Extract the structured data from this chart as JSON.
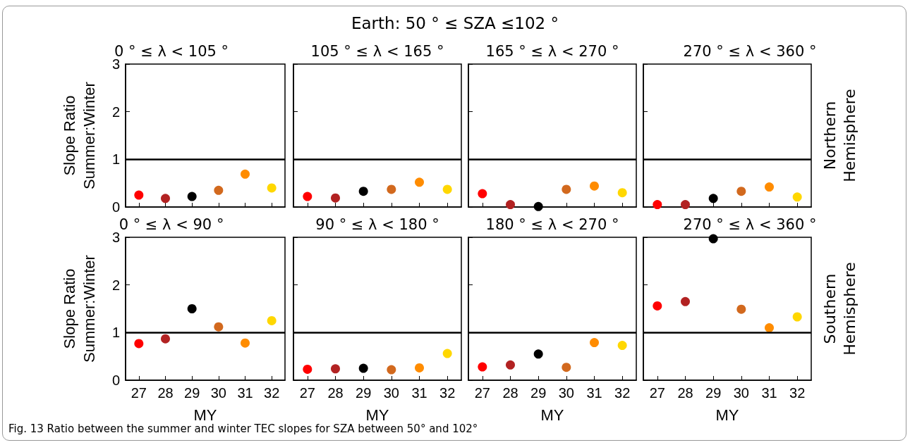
{
  "chart_data": [
    {
      "type": "scatter",
      "title": "0 ° ≤ λ < 105 °",
      "ylabel": "Slope Ratio\nSummer:Winter",
      "annotations": [
        "Earth: 50 ° ≤  SZA  ≤102 °",
        "Fig. 13  Ratio between the summer and winter TEC slopes for SZA between 50° and 102°"
      ],
      "categories": [
        "27",
        "28",
        "29",
        "30",
        "31",
        "32"
      ],
      "values": [
        0.25,
        0.18,
        0.22,
        0.35,
        0.69,
        0.4
      ],
      "colors": [
        "#ff0000",
        "#b22222",
        "#000000",
        "#d2691e",
        "#ff8c00",
        "#ffd700"
      ],
      "ylim": [
        0,
        3
      ],
      "yticks": [
        0,
        1,
        2,
        3
      ],
      "ref_lines": [
        {
          "axis": "y",
          "value": 1,
          "color": "#000000"
        }
      ],
      "tick_labels": "y",
      "grid": false,
      "marker": "circle"
    },
    {
      "type": "scatter",
      "title": "105 ° ≤ λ < 165 °",
      "categories": [
        "27",
        "28",
        "29",
        "30",
        "31",
        "32"
      ],
      "values": [
        0.22,
        0.19,
        0.33,
        0.37,
        0.52,
        0.37
      ],
      "colors": [
        "#ff0000",
        "#b22222",
        "#000000",
        "#d2691e",
        "#ff8c00",
        "#ffd700"
      ],
      "ylim": [
        0,
        3
      ],
      "yticks": [
        0,
        1,
        2,
        3
      ],
      "ref_lines": [
        {
          "axis": "y",
          "value": 1,
          "color": "#000000"
        }
      ],
      "tick_labels": false,
      "grid": false,
      "marker": "circle"
    },
    {
      "type": "scatter",
      "title": "165 ° ≤ λ < 270 °",
      "categories": [
        "27",
        "28",
        "29",
        "30",
        "31",
        "32"
      ],
      "values": [
        0.28,
        0.05,
        0.01,
        0.37,
        0.44,
        0.3
      ],
      "colors": [
        "#ff0000",
        "#b22222",
        "#000000",
        "#d2691e",
        "#ff8c00",
        "#ffd700"
      ],
      "ylim": [
        0,
        3
      ],
      "yticks": [
        0,
        1,
        2,
        3
      ],
      "ref_lines": [
        {
          "axis": "y",
          "value": 1,
          "color": "#000000"
        }
      ],
      "tick_labels": false,
      "grid": false,
      "marker": "circle"
    },
    {
      "type": "scatter",
      "title": "270 ° ≤ λ < 360 °",
      "y2label": "Northern\nHemisphere",
      "categories": [
        "27",
        "28",
        "29",
        "30",
        "31",
        "32"
      ],
      "values": [
        0.05,
        0.05,
        0.18,
        0.33,
        0.42,
        0.21
      ],
      "colors": [
        "#ff0000",
        "#b22222",
        "#000000",
        "#d2691e",
        "#ff8c00",
        "#ffd700"
      ],
      "ylim": [
        0,
        3
      ],
      "yticks": [
        0,
        1,
        2,
        3
      ],
      "ref_lines": [
        {
          "axis": "y",
          "value": 1,
          "color": "#000000"
        }
      ],
      "tick_labels": false,
      "grid": false,
      "marker": "circle"
    },
    {
      "type": "scatter",
      "title": "0 ° ≤ λ < 90 °",
      "ylabel": "Slope Ratio\nSummer:Winter",
      "xlabel": "MY",
      "categories": [
        "27",
        "28",
        "29",
        "30",
        "31",
        "32"
      ],
      "values": [
        0.77,
        0.87,
        1.5,
        1.12,
        0.78,
        1.25
      ],
      "colors": [
        "#ff0000",
        "#b22222",
        "#000000",
        "#d2691e",
        "#ff8c00",
        "#ffd700"
      ],
      "ylim": [
        0,
        3
      ],
      "yticks": [
        0,
        1,
        2,
        3
      ],
      "ref_lines": [
        {
          "axis": "y",
          "value": 1,
          "color": "#000000"
        }
      ],
      "grid": false,
      "marker": "circle"
    },
    {
      "type": "scatter",
      "title": "90 ° ≤ λ < 180 °",
      "xlabel": "MY",
      "categories": [
        "27",
        "28",
        "29",
        "30",
        "31",
        "32"
      ],
      "values": [
        0.23,
        0.24,
        0.25,
        0.22,
        0.26,
        0.56
      ],
      "colors": [
        "#ff0000",
        "#b22222",
        "#000000",
        "#d2691e",
        "#ff8c00",
        "#ffd700"
      ],
      "ylim": [
        0,
        3
      ],
      "yticks": [
        0,
        1,
        2,
        3
      ],
      "ref_lines": [
        {
          "axis": "y",
          "value": 1,
          "color": "#000000"
        }
      ],
      "tick_labels": "x",
      "grid": false,
      "marker": "circle"
    },
    {
      "type": "scatter",
      "title": "180 ° ≤ λ < 270 °",
      "xlabel": "MY",
      "categories": [
        "27",
        "28",
        "29",
        "30",
        "31",
        "32"
      ],
      "values": [
        0.28,
        0.32,
        0.55,
        0.27,
        0.79,
        0.73
      ],
      "colors": [
        "#ff0000",
        "#b22222",
        "#000000",
        "#d2691e",
        "#ff8c00",
        "#ffd700"
      ],
      "ylim": [
        0,
        3
      ],
      "yticks": [
        0,
        1,
        2,
        3
      ],
      "ref_lines": [
        {
          "axis": "y",
          "value": 1,
          "color": "#000000"
        }
      ],
      "tick_labels": "x",
      "grid": false,
      "marker": "circle"
    },
    {
      "type": "scatter",
      "title": "270 ° ≤ λ < 360 °",
      "xlabel": "MY",
      "y2label": "Southern\nHemisphere",
      "categories": [
        "27",
        "28",
        "29",
        "30",
        "31",
        "32"
      ],
      "values": [
        1.56,
        1.65,
        2.97,
        1.49,
        1.1,
        1.33
      ],
      "colors": [
        "#ff0000",
        "#b22222",
        "#000000",
        "#d2691e",
        "#ff8c00",
        "#ffd700"
      ],
      "ylim": [
        0,
        3
      ],
      "yticks": [
        0,
        1,
        2,
        3
      ],
      "ref_lines": [
        {
          "axis": "y",
          "value": 1,
          "color": "#000000"
        }
      ],
      "tick_labels": "x",
      "grid": false,
      "marker": "circle"
    }
  ]
}
